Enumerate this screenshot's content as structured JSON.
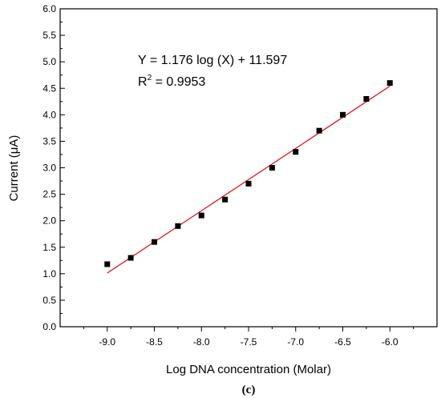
{
  "chart_data": {
    "type": "scatter",
    "xlabel": "Log DNA concentration (Molar)",
    "ylabel": "Current (μA)",
    "xlim": [
      -9.5,
      -5.5
    ],
    "ylim": [
      0.0,
      6.0
    ],
    "xticks": [
      "-9.0",
      "-8.5",
      "-8.0",
      "-7.5",
      "-7.0",
      "-6.5",
      "-6.0"
    ],
    "yticks": [
      "0.0",
      "0.5",
      "1.0",
      "1.5",
      "2.0",
      "2.5",
      "3.0",
      "3.5",
      "4.0",
      "4.5",
      "5.0",
      "5.5",
      "6.0"
    ],
    "x": [
      -9.0,
      -8.75,
      -8.5,
      -8.25,
      -8.0,
      -7.75,
      -7.5,
      -7.25,
      -7.0,
      -6.75,
      -6.5,
      -6.25,
      -6.0
    ],
    "y": [
      1.18,
      1.3,
      1.6,
      1.9,
      2.1,
      2.4,
      2.7,
      3.0,
      3.3,
      3.7,
      4.0,
      4.3,
      4.6
    ],
    "fit": {
      "slope": 1.176,
      "intercept": 11.597,
      "x_range": [
        -9.0,
        -6.0
      ]
    },
    "equation_text": "Y  = 1.176 log (X) + 11.597",
    "r2_label": "R",
    "r2_sup": "2",
    "r2_value": " = 0.9953",
    "caption": "(c)",
    "grid": false,
    "colors": {
      "points": "#000000",
      "fit_line": "#e8000b",
      "axis": "#000000"
    }
  }
}
